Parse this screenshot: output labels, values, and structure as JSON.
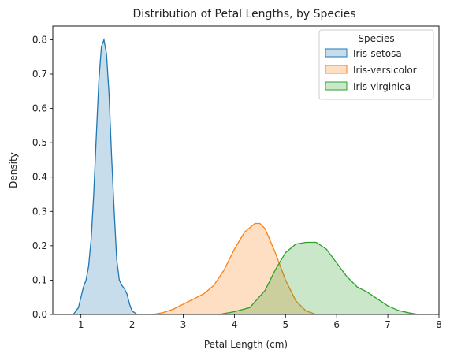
{
  "chart_data": {
    "type": "area",
    "title": "Distribution of Petal Lengths, by Species",
    "xlabel": "Petal Length (cm)",
    "ylabel": "Density",
    "xlim": [
      0.45,
      8.0
    ],
    "ylim": [
      0.0,
      0.84
    ],
    "xticks": [
      1,
      2,
      3,
      4,
      5,
      6,
      7,
      8
    ],
    "yticks": [
      0.0,
      0.1,
      0.2,
      0.3,
      0.4,
      0.5,
      0.6,
      0.7,
      0.8
    ],
    "xtick_labels": [
      "1",
      "2",
      "3",
      "4",
      "5",
      "6",
      "7",
      "8"
    ],
    "ytick_labels": [
      "0.0",
      "0.1",
      "0.2",
      "0.3",
      "0.4",
      "0.5",
      "0.6",
      "0.7",
      "0.8"
    ],
    "grid": false,
    "legend": {
      "title": "Species",
      "placement": "top-right"
    },
    "series": [
      {
        "name": "Iris-setosa",
        "color": "#1f77b4",
        "points": [
          [
            0.85,
            0.0
          ],
          [
            0.95,
            0.02
          ],
          [
            1.0,
            0.05
          ],
          [
            1.05,
            0.08
          ],
          [
            1.1,
            0.1
          ],
          [
            1.15,
            0.14
          ],
          [
            1.2,
            0.22
          ],
          [
            1.25,
            0.35
          ],
          [
            1.3,
            0.52
          ],
          [
            1.35,
            0.68
          ],
          [
            1.4,
            0.78
          ],
          [
            1.45,
            0.8
          ],
          [
            1.5,
            0.76
          ],
          [
            1.55,
            0.64
          ],
          [
            1.6,
            0.46
          ],
          [
            1.65,
            0.3
          ],
          [
            1.7,
            0.16
          ],
          [
            1.75,
            0.1
          ],
          [
            1.8,
            0.085
          ],
          [
            1.85,
            0.075
          ],
          [
            1.9,
            0.06
          ],
          [
            1.95,
            0.03
          ],
          [
            2.0,
            0.01
          ],
          [
            2.1,
            0.0
          ]
        ]
      },
      {
        "name": "Iris-versicolor",
        "color": "#ff7f0e",
        "points": [
          [
            2.4,
            0.0
          ],
          [
            2.6,
            0.005
          ],
          [
            2.8,
            0.015
          ],
          [
            3.0,
            0.03
          ],
          [
            3.2,
            0.045
          ],
          [
            3.4,
            0.06
          ],
          [
            3.6,
            0.085
          ],
          [
            3.8,
            0.13
          ],
          [
            4.0,
            0.19
          ],
          [
            4.2,
            0.24
          ],
          [
            4.4,
            0.265
          ],
          [
            4.5,
            0.265
          ],
          [
            4.6,
            0.25
          ],
          [
            4.8,
            0.18
          ],
          [
            5.0,
            0.1
          ],
          [
            5.2,
            0.04
          ],
          [
            5.4,
            0.01
          ],
          [
            5.6,
            0.0
          ]
        ]
      },
      {
        "name": "Iris-virginica",
        "color": "#2ca02c",
        "points": [
          [
            3.7,
            0.0
          ],
          [
            4.0,
            0.008
          ],
          [
            4.3,
            0.02
          ],
          [
            4.6,
            0.07
          ],
          [
            4.8,
            0.13
          ],
          [
            5.0,
            0.18
          ],
          [
            5.2,
            0.205
          ],
          [
            5.4,
            0.21
          ],
          [
            5.6,
            0.21
          ],
          [
            5.8,
            0.19
          ],
          [
            6.0,
            0.15
          ],
          [
            6.2,
            0.11
          ],
          [
            6.4,
            0.08
          ],
          [
            6.6,
            0.065
          ],
          [
            6.8,
            0.045
          ],
          [
            7.0,
            0.025
          ],
          [
            7.2,
            0.012
          ],
          [
            7.4,
            0.005
          ],
          [
            7.6,
            0.0
          ]
        ]
      }
    ]
  }
}
